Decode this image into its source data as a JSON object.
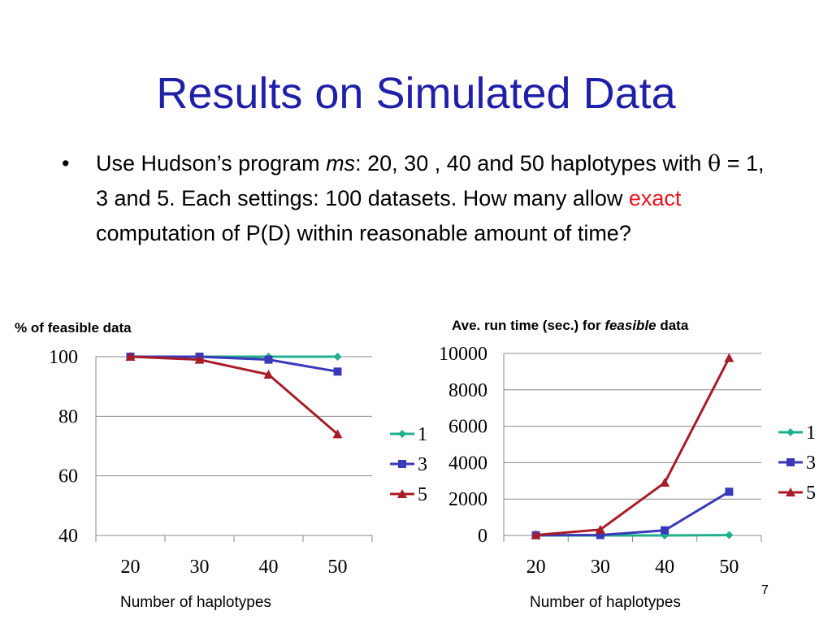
{
  "slide": {
    "title": "Results on Simulated Data",
    "bullet_symbol": "•",
    "bullet_segments": {
      "t1": "Use Hudson’s program ",
      "t2": "ms",
      "t3": ": 20, 30 , 40 and 50 haplotypes with ",
      "t4": "θ",
      "t5": " = 1, 3 and 5. Each settings: 100 datasets. How many allow ",
      "t6": "exact",
      "t7": " computation of P(D) within reasonable amount of time?"
    },
    "left_chart_title": "% of feasible data",
    "right_chart_title_parts": {
      "a": "Ave. run time (sec.) for ",
      "b": "feasible",
      "c": " data"
    },
    "left_xaxis_title": "Number of haplotypes",
    "right_xaxis_title": "Number of haplotypes",
    "page_number": "7"
  },
  "colors": {
    "title": "#1f1fa8",
    "highlight": "#e8141e",
    "series_1": "#20b08c",
    "series_3": "#3a3ab8",
    "series_5": "#a81c28",
    "grid": "#888888"
  },
  "chart_data": [
    {
      "type": "line",
      "title": "% of feasible data",
      "xlabel": "Number of haplotypes",
      "ylabel": "",
      "categories": [
        "20",
        "30",
        "40",
        "50"
      ],
      "ylim": [
        40,
        100
      ],
      "yticks": [
        "40",
        "60",
        "80",
        "100"
      ],
      "grid": true,
      "legend": "right",
      "series": [
        {
          "name": "1",
          "marker": "diamond",
          "values": [
            100,
            100,
            100,
            100
          ]
        },
        {
          "name": "3",
          "marker": "square",
          "values": [
            100,
            100,
            99,
            95
          ]
        },
        {
          "name": "5",
          "marker": "triangle",
          "values": [
            100,
            99,
            94,
            74
          ]
        }
      ]
    },
    {
      "type": "line",
      "title": "Ave. run time (sec.) for feasible data",
      "xlabel": "Number of haplotypes",
      "ylabel": "",
      "categories": [
        "20",
        "30",
        "40",
        "50"
      ],
      "ylim": [
        0,
        10000
      ],
      "yticks": [
        "0",
        "2000",
        "4000",
        "6000",
        "8000",
        "10000"
      ],
      "grid": true,
      "legend": "right",
      "series": [
        {
          "name": "1",
          "marker": "diamond",
          "values": [
            0,
            0,
            0,
            20
          ]
        },
        {
          "name": "3",
          "marker": "square",
          "values": [
            10,
            20,
            280,
            2400
          ]
        },
        {
          "name": "5",
          "marker": "triangle",
          "values": [
            20,
            320,
            2900,
            9750
          ]
        }
      ]
    }
  ]
}
